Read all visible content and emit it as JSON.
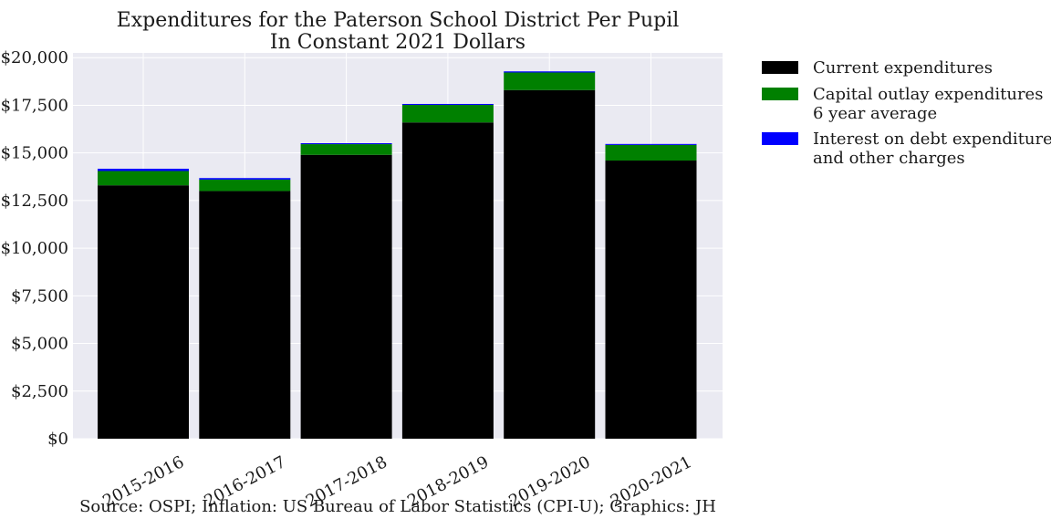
{
  "chart_data": {
    "type": "bar",
    "stacked": true,
    "title": "Expenditures for the Paterson School District Per Pupil",
    "subtitle": "In Constant 2021 Dollars",
    "xlabel": "",
    "ylabel": "",
    "caption": "Source: OSPI; Inflation: US Bureau of Labor Statistics (CPI-U); Graphics: JH",
    "categories": [
      "2015-2016",
      "2016-2017",
      "2017-2018",
      "2018-2019",
      "2019-2020",
      "2020-2021"
    ],
    "series": [
      {
        "name": "Current expenditures",
        "color": "#000000",
        "values": [
          13300,
          13000,
          14900,
          16600,
          18300,
          14600
        ]
      },
      {
        "name": "Capital outlay expenditures\n6 year average",
        "color": "#008000",
        "values": [
          750,
          600,
          560,
          920,
          920,
          820
        ]
      },
      {
        "name": "Interest on debt expenditures\nand other charges",
        "color": "#0000ff",
        "values": [
          120,
          80,
          50,
          50,
          60,
          50
        ]
      }
    ],
    "ylim": [
      0,
      20250
    ],
    "yticks": [
      0,
      2500,
      5000,
      7500,
      10000,
      12500,
      15000,
      17500,
      20000
    ],
    "ytick_labels": [
      "$0",
      "$2,500",
      "$5,000",
      "$7,500",
      "$10,000",
      "$12,500",
      "$15,000",
      "$17,500",
      "$20,000"
    ],
    "grid": true,
    "legend_position": "outside-top-right"
  }
}
